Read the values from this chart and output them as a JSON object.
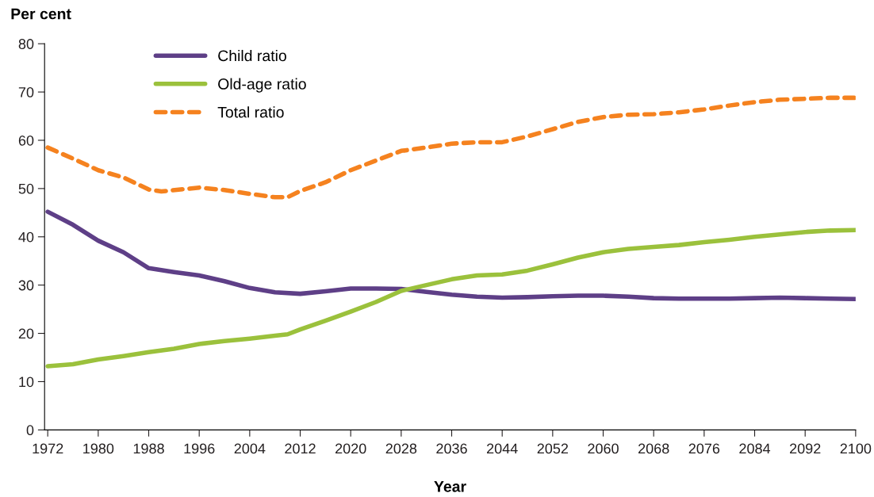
{
  "chart_data": {
    "type": "line",
    "xlabel": "Year",
    "ylabel": "Per cent",
    "xlim": [
      1971.5,
      2100
    ],
    "xticks": [
      1972,
      1980,
      1988,
      1996,
      2004,
      2012,
      2020,
      2028,
      2036,
      2044,
      2052,
      2060,
      2068,
      2076,
      2084,
      2092,
      2100
    ],
    "ylim": [
      0,
      80
    ],
    "yticks": [
      0,
      10,
      20,
      30,
      40,
      50,
      60,
      70,
      80
    ],
    "grid": false,
    "legend": "top left",
    "marker": "none",
    "series": [
      {
        "name": "Child ratio",
        "color": "#5e3f87",
        "line_style": "solid",
        "x": [
          1972,
          1976,
          1980,
          1984,
          1988,
          1992,
          1996,
          2000,
          2004,
          2008,
          2012,
          2016,
          2020,
          2024,
          2028,
          2032,
          2036,
          2040,
          2044,
          2048,
          2052,
          2056,
          2060,
          2064,
          2068,
          2072,
          2076,
          2080,
          2084,
          2088,
          2092,
          2096,
          2100
        ],
        "values": [
          45.2,
          42.5,
          39.2,
          36.8,
          33.5,
          32.7,
          32.0,
          30.8,
          29.4,
          28.5,
          28.2,
          28.7,
          29.3,
          29.3,
          29.2,
          28.6,
          28.0,
          27.6,
          27.4,
          27.5,
          27.7,
          27.8,
          27.8,
          27.6,
          27.3,
          27.2,
          27.2,
          27.2,
          27.3,
          27.4,
          27.3,
          27.2,
          27.1
        ]
      },
      {
        "name": "Old-age ratio",
        "color": "#9bc13c",
        "line_style": "solid",
        "x": [
          1972,
          1976,
          1980,
          1984,
          1988,
          1992,
          1996,
          2000,
          2004,
          2008,
          2010,
          2012,
          2016,
          2020,
          2024,
          2028,
          2032,
          2036,
          2040,
          2044,
          2048,
          2052,
          2056,
          2060,
          2064,
          2068,
          2072,
          2076,
          2080,
          2084,
          2088,
          2092,
          2096,
          2100
        ],
        "values": [
          13.2,
          13.6,
          14.6,
          15.3,
          16.1,
          16.8,
          17.8,
          18.4,
          18.9,
          19.5,
          19.8,
          20.8,
          22.6,
          24.5,
          26.5,
          28.8,
          30.0,
          31.2,
          32.0,
          32.2,
          33.0,
          34.3,
          35.7,
          36.8,
          37.5,
          37.9,
          38.3,
          38.9,
          39.4,
          40.0,
          40.5,
          41.0,
          41.3,
          41.4
        ]
      },
      {
        "name": "Total ratio",
        "color": "#f5821f",
        "line_style": "dashed",
        "x": [
          1972,
          1976,
          1980,
          1984,
          1988,
          1990,
          1996,
          2000,
          2004,
          2008,
          2010,
          2012,
          2016,
          2020,
          2024,
          2028,
          2032,
          2036,
          2040,
          2044,
          2048,
          2052,
          2056,
          2060,
          2064,
          2068,
          2072,
          2076,
          2080,
          2084,
          2088,
          2092,
          2096,
          2100
        ],
        "values": [
          58.5,
          56.2,
          53.8,
          52.3,
          49.8,
          49.4,
          50.2,
          49.7,
          48.9,
          48.2,
          48.2,
          49.5,
          51.3,
          53.8,
          55.8,
          57.8,
          58.5,
          59.3,
          59.6,
          59.6,
          60.8,
          62.3,
          63.8,
          64.8,
          65.3,
          65.4,
          65.8,
          66.4,
          67.2,
          67.9,
          68.4,
          68.6,
          68.8,
          68.8
        ]
      }
    ]
  }
}
